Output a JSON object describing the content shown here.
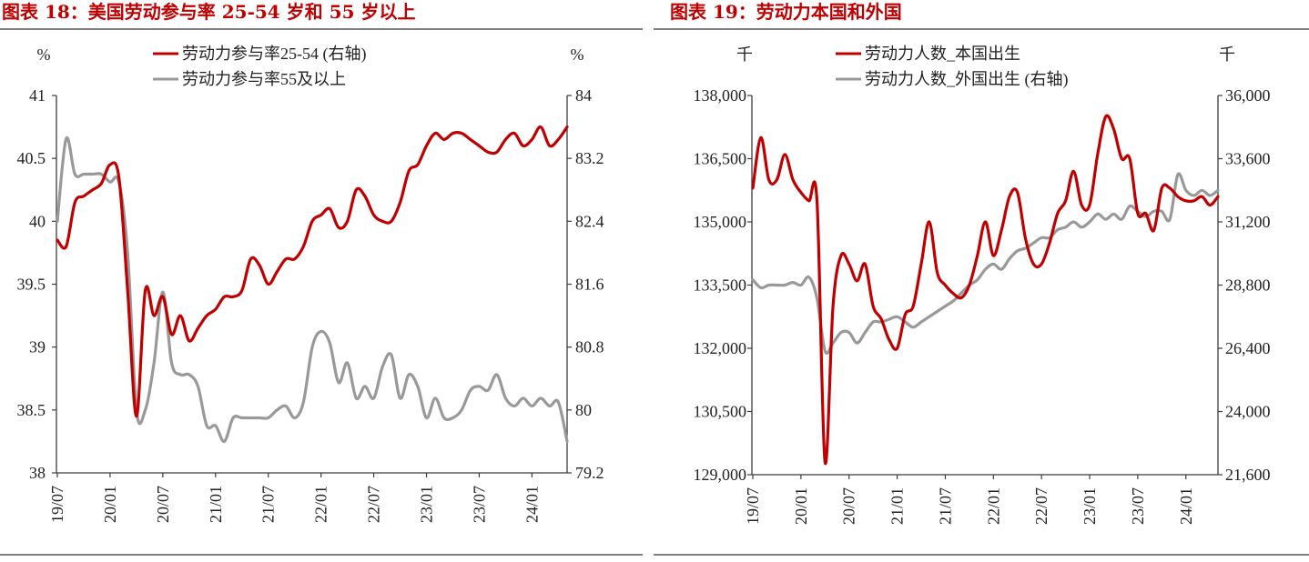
{
  "charts": [
    {
      "title": "图表 18：美国劳动参与率 25-54 岁和 55 岁以上",
      "left_unit": "%",
      "right_unit": "%",
      "y_left_ticks": [
        "41",
        "40.5",
        "40",
        "39.5",
        "39",
        "38.5",
        "38"
      ],
      "y_right_ticks": [
        "84",
        "83.2",
        "82.4",
        "81.6",
        "80.8",
        "80",
        "79.2"
      ],
      "x_ticks": [
        "19/07",
        "20/01",
        "20/07",
        "21/01",
        "21/07",
        "22/01",
        "22/07",
        "23/01",
        "23/07",
        "24/01"
      ],
      "legend": [
        "劳动力参与率25-54 (右轴)",
        "劳动力参与率55及以上"
      ]
    },
    {
      "title": "图表 19：劳动力本国和外国",
      "left_unit": "千",
      "right_unit": "千",
      "y_left_ticks": [
        "138,000",
        "136,500",
        "135,000",
        "133,500",
        "132,000",
        "130,500",
        "129,000"
      ],
      "y_right_ticks": [
        "36,000",
        "33,600",
        "31,200",
        "28,800",
        "26,400",
        "24,000",
        "21,600"
      ],
      "x_ticks": [
        "19/07",
        "20/01",
        "20/07",
        "21/01",
        "21/07",
        "22/01",
        "22/07",
        "23/01",
        "23/07",
        "24/01"
      ],
      "legend": [
        "劳动力人数_本国出生",
        "劳动力人数_外国出生 (右轴)"
      ]
    }
  ],
  "colors": {
    "series1": "#C00000",
    "series2": "#999999",
    "title": "#C00000",
    "axis": "#3c3c3c"
  },
  "chart_data": [
    {
      "type": "line",
      "title": "图表 18：美国劳动参与率 25-54 岁和 55 岁以上",
      "x": [
        "19/07",
        "19/08",
        "19/09",
        "19/10",
        "19/11",
        "19/12",
        "20/01",
        "20/02",
        "20/03",
        "20/04",
        "20/05",
        "20/06",
        "20/07",
        "20/08",
        "20/09",
        "20/10",
        "20/11",
        "20/12",
        "21/01",
        "21/02",
        "21/03",
        "21/04",
        "21/05",
        "21/06",
        "21/07",
        "21/08",
        "21/09",
        "21/10",
        "21/11",
        "21/12",
        "22/01",
        "22/02",
        "22/03",
        "22/04",
        "22/05",
        "22/06",
        "22/07",
        "22/08",
        "22/09",
        "22/10",
        "22/11",
        "22/12",
        "23/01",
        "23/02",
        "23/03",
        "23/04",
        "23/05",
        "23/06",
        "23/07",
        "23/08",
        "23/09",
        "23/10",
        "23/11",
        "23/12",
        "24/01",
        "24/02",
        "24/03",
        "24/04",
        "24/05"
      ],
      "series": [
        {
          "name": "劳动力参与率25-54 (右轴)",
          "axis": "left",
          "values": [
            39.85,
            39.8,
            40.15,
            40.2,
            40.25,
            40.3,
            40.45,
            40.35,
            39.45,
            38.45,
            39.45,
            39.25,
            39.4,
            39.1,
            39.25,
            39.05,
            39.15,
            39.25,
            39.3,
            39.4,
            39.4,
            39.45,
            39.7,
            39.65,
            39.5,
            39.6,
            39.7,
            39.7,
            39.8,
            40.0,
            40.05,
            40.1,
            39.95,
            40.0,
            40.25,
            40.2,
            40.05,
            40.0,
            40.0,
            40.15,
            40.4,
            40.45,
            40.6,
            40.7,
            40.65,
            40.7,
            40.7,
            40.65,
            40.6,
            40.55,
            40.55,
            40.65,
            40.7,
            40.6,
            40.65,
            40.75,
            40.6,
            40.65,
            40.75
          ]
        },
        {
          "name": "劳动力参与率55及以上",
          "axis": "right",
          "values": [
            82.4,
            83.45,
            83.0,
            83.0,
            83.0,
            83.0,
            82.9,
            82.9,
            82.0,
            80.0,
            80.0,
            80.6,
            81.5,
            80.6,
            80.45,
            80.45,
            80.3,
            79.8,
            79.8,
            79.6,
            79.9,
            79.9,
            79.9,
            79.9,
            79.9,
            80.0,
            80.05,
            79.9,
            80.1,
            80.8,
            81.0,
            80.85,
            80.35,
            80.6,
            80.15,
            80.3,
            80.15,
            80.55,
            80.7,
            80.15,
            80.45,
            80.3,
            79.9,
            80.15,
            79.9,
            79.9,
            80.0,
            80.25,
            80.3,
            80.25,
            80.45,
            80.15,
            80.05,
            80.15,
            80.05,
            80.15,
            80.05,
            80.1,
            79.6
          ]
        }
      ],
      "ylim_left": [
        38,
        41
      ],
      "ylim_right": [
        79.2,
        84
      ],
      "legend_position": "top"
    },
    {
      "type": "line",
      "title": "图表 19：劳动力本国和外国",
      "x": [
        "19/07",
        "19/08",
        "19/09",
        "19/10",
        "19/11",
        "19/12",
        "20/01",
        "20/02",
        "20/03",
        "20/04",
        "20/05",
        "20/06",
        "20/07",
        "20/08",
        "20/09",
        "20/10",
        "20/11",
        "20/12",
        "21/01",
        "21/02",
        "21/03",
        "21/04",
        "21/05",
        "21/06",
        "21/07",
        "21/08",
        "21/09",
        "21/10",
        "21/11",
        "21/12",
        "22/01",
        "22/02",
        "22/03",
        "22/04",
        "22/05",
        "22/06",
        "22/07",
        "22/08",
        "22/09",
        "22/10",
        "22/11",
        "22/12",
        "23/01",
        "23/02",
        "23/03",
        "23/04",
        "23/05",
        "23/06",
        "23/07",
        "23/08",
        "23/09",
        "23/10",
        "23/11",
        "23/12",
        "24/01",
        "24/02",
        "24/03",
        "24/04",
        "24/05"
      ],
      "series": [
        {
          "name": "劳动力人数_本国出生",
          "axis": "left",
          "values": [
            135.8,
            137.0,
            136.0,
            136.0,
            136.6,
            136.0,
            135.7,
            135.5,
            135.5,
            129.3,
            133.0,
            134.2,
            134.0,
            133.6,
            134.0,
            133.0,
            132.7,
            132.2,
            132.0,
            132.8,
            133.0,
            134.0,
            135.0,
            133.8,
            133.5,
            133.3,
            133.2,
            133.5,
            134.2,
            135.0,
            134.2,
            134.8,
            135.6,
            135.7,
            134.6,
            134.0,
            134.0,
            134.5,
            135.2,
            135.5,
            136.2,
            135.4,
            135.4,
            136.6,
            137.5,
            137.2,
            136.5,
            136.5,
            135.2,
            135.2,
            134.8,
            135.8,
            135.8,
            135.6,
            135.5,
            135.5,
            135.6,
            135.4,
            135.6
          ]
        },
        {
          "name": "劳动力人数_外国出生 (右轴)",
          "axis": "right",
          "values": [
            29.0,
            28.7,
            28.8,
            28.8,
            28.8,
            28.9,
            28.8,
            29.1,
            28.3,
            26.3,
            26.6,
            27.0,
            27.0,
            26.6,
            27.0,
            27.4,
            27.4,
            27.5,
            27.6,
            27.4,
            27.2,
            27.4,
            27.6,
            27.8,
            28.0,
            28.2,
            28.5,
            28.8,
            29.0,
            29.4,
            29.6,
            29.4,
            29.8,
            30.1,
            30.2,
            30.4,
            30.6,
            30.6,
            30.9,
            31.0,
            31.2,
            31.0,
            31.2,
            31.5,
            31.3,
            31.5,
            31.3,
            31.8,
            31.6,
            31.4,
            31.6,
            31.6,
            31.3,
            33.0,
            32.4,
            32.2,
            32.4,
            32.2,
            32.4
          ]
        }
      ],
      "ylim_left": [
        129000,
        138000
      ],
      "ylim_right": [
        21600,
        36000
      ],
      "left_values_unit_scale": 1000,
      "right_values_unit_scale": 1000,
      "legend_position": "top"
    }
  ]
}
